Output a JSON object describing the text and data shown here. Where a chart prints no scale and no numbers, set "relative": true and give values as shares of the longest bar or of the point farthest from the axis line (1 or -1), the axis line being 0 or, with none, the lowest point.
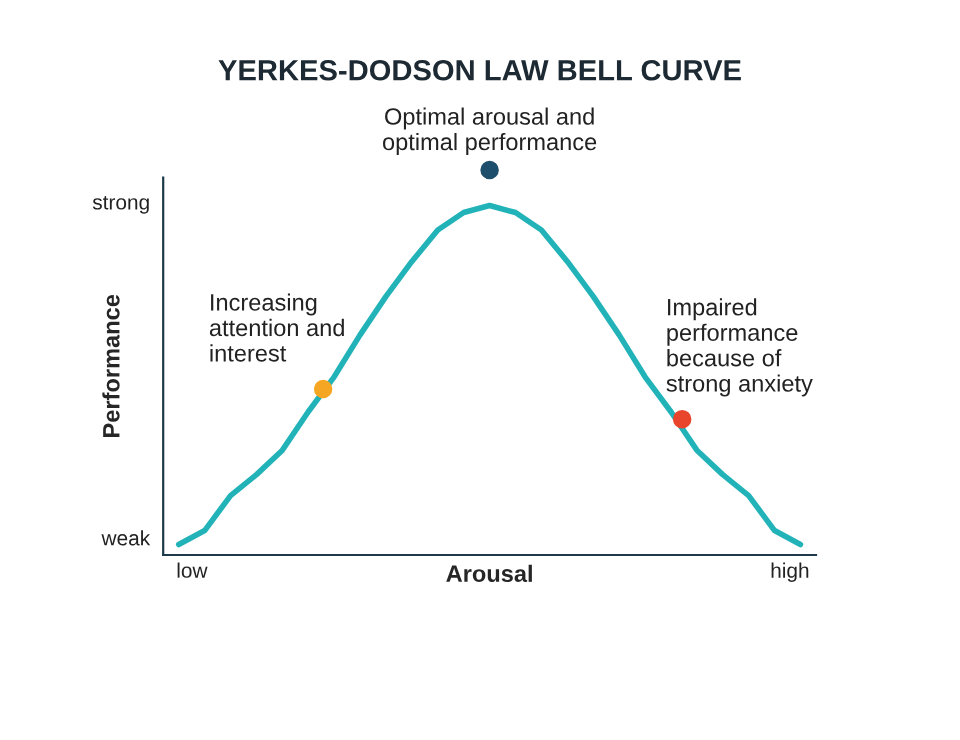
{
  "chart_data": {
    "type": "line",
    "relative": true,
    "title": "YERKES-DODSON LAW BELL CURVE",
    "xlabel": "Arousal",
    "ylabel": "Performance",
    "categories": [
      null,
      null,
      null,
      null,
      null,
      null,
      null,
      null,
      null,
      null,
      null,
      null,
      null,
      null,
      null,
      null,
      null,
      null,
      null,
      null,
      null,
      null,
      null,
      null,
      null
    ],
    "grid": false,
    "legend": false,
    "line_style": "solid",
    "series": [
      {
        "color": "#22b3b8",
        "values": [
          0.03,
          0.07,
          0.17,
          0.23,
          0.3,
          0.41,
          0.51,
          0.63,
          0.74,
          0.84,
          0.93,
          0.98,
          1,
          0.98,
          0.93,
          0.84,
          0.74,
          0.63,
          0.51,
          0.41,
          0.3,
          0.23,
          0.17,
          0.07,
          0.03
        ]
      }
    ],
    "annotations": [
      "Increasing\nattention and\ninterest",
      "Optimal arousal and\noptimal performance",
      "Impaired\nperformance\nbecause of\nstrong anxiety",
      "strong",
      "weak",
      "low",
      "high"
    ]
  }
}
